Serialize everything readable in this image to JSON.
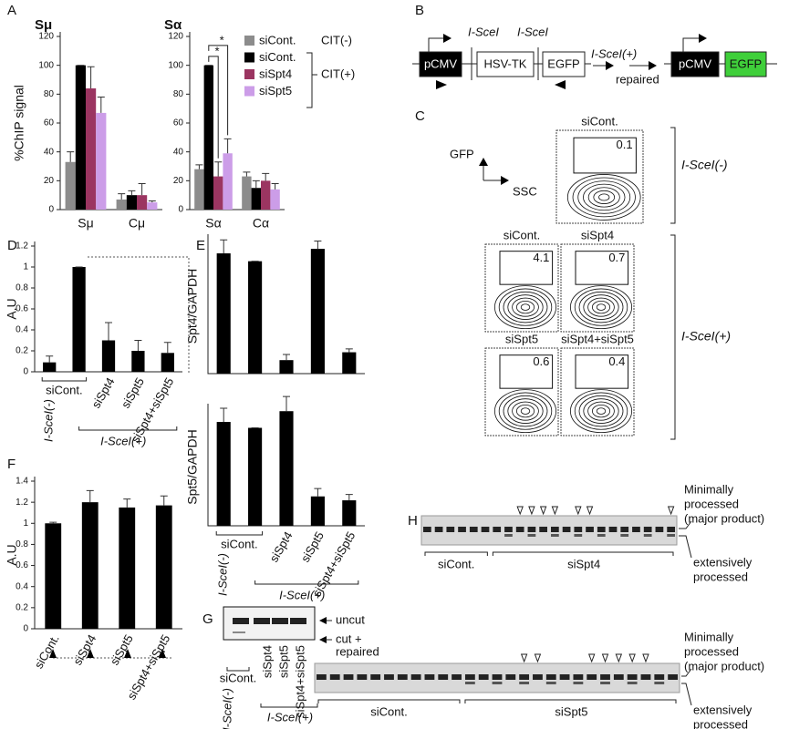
{
  "chart_data": [
    {
      "type": "bar",
      "title": "Sμ",
      "ylabel": "%ChIP signal",
      "categories": [
        "Sμ",
        "Cμ"
      ],
      "series": [
        {
          "values": [
            33,
            7
          ],
          "errors": [
            7,
            4
          ]
        },
        {
          "values": [
            100,
            10
          ],
          "errors": [
            0,
            3
          ]
        },
        {
          "values": [
            84,
            10
          ],
          "errors": [
            15,
            8
          ]
        },
        {
          "values": [
            67,
            5
          ],
          "errors": [
            11,
            1
          ]
        }
      ],
      "ylim": [
        0,
        120
      ],
      "yticks": [
        0,
        20,
        40,
        60,
        80,
        100,
        120
      ]
    },
    {
      "type": "bar",
      "title": "Sα",
      "categories": [
        "Sα",
        "Cα"
      ],
      "series": [
        {
          "name": "siCont.",
          "color": "#8c8c8c",
          "values": [
            28,
            23
          ],
          "errors": [
            3,
            3
          ]
        },
        {
          "name": "siCont.",
          "color": "#000000",
          "values": [
            100,
            15
          ],
          "errors": [
            0,
            5
          ]
        },
        {
          "name": "siSpt4",
          "color": "#9b3561",
          "values": [
            23,
            20
          ],
          "errors": [
            10,
            5
          ]
        },
        {
          "name": "siSpt5",
          "color": "#cc9de8",
          "values": [
            39,
            14
          ],
          "errors": [
            10,
            4
          ]
        }
      ],
      "legend_groups": [
        "CIT(-)",
        "CIT(+)"
      ],
      "annotations": [
        "*",
        "*"
      ],
      "ylim": [
        0,
        120
      ],
      "yticks": [
        0,
        20,
        40,
        60,
        80,
        100,
        120
      ]
    },
    {
      "type": "bar",
      "ylabel": "A.U",
      "color": "#000000",
      "categories": [
        null,
        null,
        "siSpt4",
        "siSpt5",
        "siSpt4+siSpt5"
      ],
      "bracket_label": "siCont.",
      "group_labels": [
        "I-SceI(-)",
        "I-SceI(+)"
      ],
      "values": [
        0.09,
        1,
        0.3,
        0.2,
        0.18
      ],
      "errors": [
        0.06,
        0,
        0.17,
        0.1,
        0.1
      ],
      "ylim": [
        0,
        1.2
      ],
      "yticks": [
        0,
        0.2,
        0.4,
        0.6,
        0.8,
        1,
        1.2
      ]
    },
    {
      "type": "bar",
      "ylabel": "Spt4/GAPDH",
      "color": "#000000",
      "values": [
        1.07,
        1,
        0.12,
        1.11,
        0.19
      ],
      "errors": [
        0.12,
        0,
        0.05,
        0.07,
        0.03
      ],
      "ylim": [
        0,
        1.2
      ]
    },
    {
      "type": "bar",
      "ylabel": "Spt5/GAPDH",
      "color": "#000000",
      "categories": [
        null,
        null,
        "siSpt4",
        "siSpt5",
        "siSpt4+siSpt5"
      ],
      "bracket_label": "siCont.",
      "group_labels": [
        "I-SceI(-)",
        "I-SceI(+)"
      ],
      "values": [
        1.06,
        1,
        1.17,
        0.3,
        0.26
      ],
      "errors": [
        0.14,
        0,
        0.15,
        0.08,
        0.06
      ],
      "ylim": [
        0,
        1.2
      ]
    },
    {
      "type": "bar",
      "ylabel": "A.U",
      "color": "#000000",
      "categories": [
        "siCont.",
        "siSpt4",
        "siSpt5",
        "siSpt4+siSpt5"
      ],
      "values": [
        1,
        1.2,
        1.15,
        1.17
      ],
      "errors": [
        0.01,
        0.11,
        0.08,
        0.09
      ],
      "ylim": [
        0,
        1.4
      ],
      "yticks": [
        0,
        0.2,
        0.4,
        0.6,
        0.8,
        1,
        1.2,
        1.4
      ]
    }
  ],
  "figure": {
    "panels": [
      "A",
      "B",
      "C",
      "D",
      "E",
      "F",
      "G",
      "H"
    ],
    "b": {
      "boxes": [
        "pCMV",
        "HSV-TK",
        "EGFP",
        "pCMV",
        "EGFP"
      ],
      "sites": [
        "I-SceI",
        "I-SceI"
      ],
      "arrow_label": "I-SceI(+)",
      "repaired": "repaired"
    },
    "c": {
      "axis_y": "GFP",
      "axis_x": "SSC",
      "groups": [
        "I-SceI(-)",
        "I-SceI(+)"
      ],
      "plots": [
        {
          "label": "siCont.",
          "gate": 0.1
        },
        {
          "label": "siCont.",
          "gate": 4.1
        },
        {
          "label": "siSpt4",
          "gate": 0.7
        },
        {
          "label": "siSpt5",
          "gate": 0.6
        },
        {
          "label": "siSpt4+siSpt5",
          "gate": 0.4
        }
      ]
    },
    "g": {
      "uncut": "uncut",
      "cut": [
        "cut +",
        "repaired"
      ],
      "lanes": [
        "siCont.",
        "siSpt4",
        "siSpt5",
        "siSpt4+siSpt5"
      ],
      "groups": [
        "I-SceI(-)",
        "I-SceI(+)"
      ]
    },
    "h": {
      "gels": [
        {
          "lanes": [
            "siCont.",
            "siSpt4"
          ],
          "major": [
            "Minimally",
            "processed",
            "(major product)"
          ],
          "minor": [
            "extensively",
            "processed"
          ]
        },
        {
          "lanes": [
            "siCont.",
            "siSpt5"
          ],
          "major": [
            "Minimally",
            "processed",
            "(major product)"
          ],
          "minor": [
            "extensively",
            "processed"
          ]
        }
      ]
    }
  }
}
